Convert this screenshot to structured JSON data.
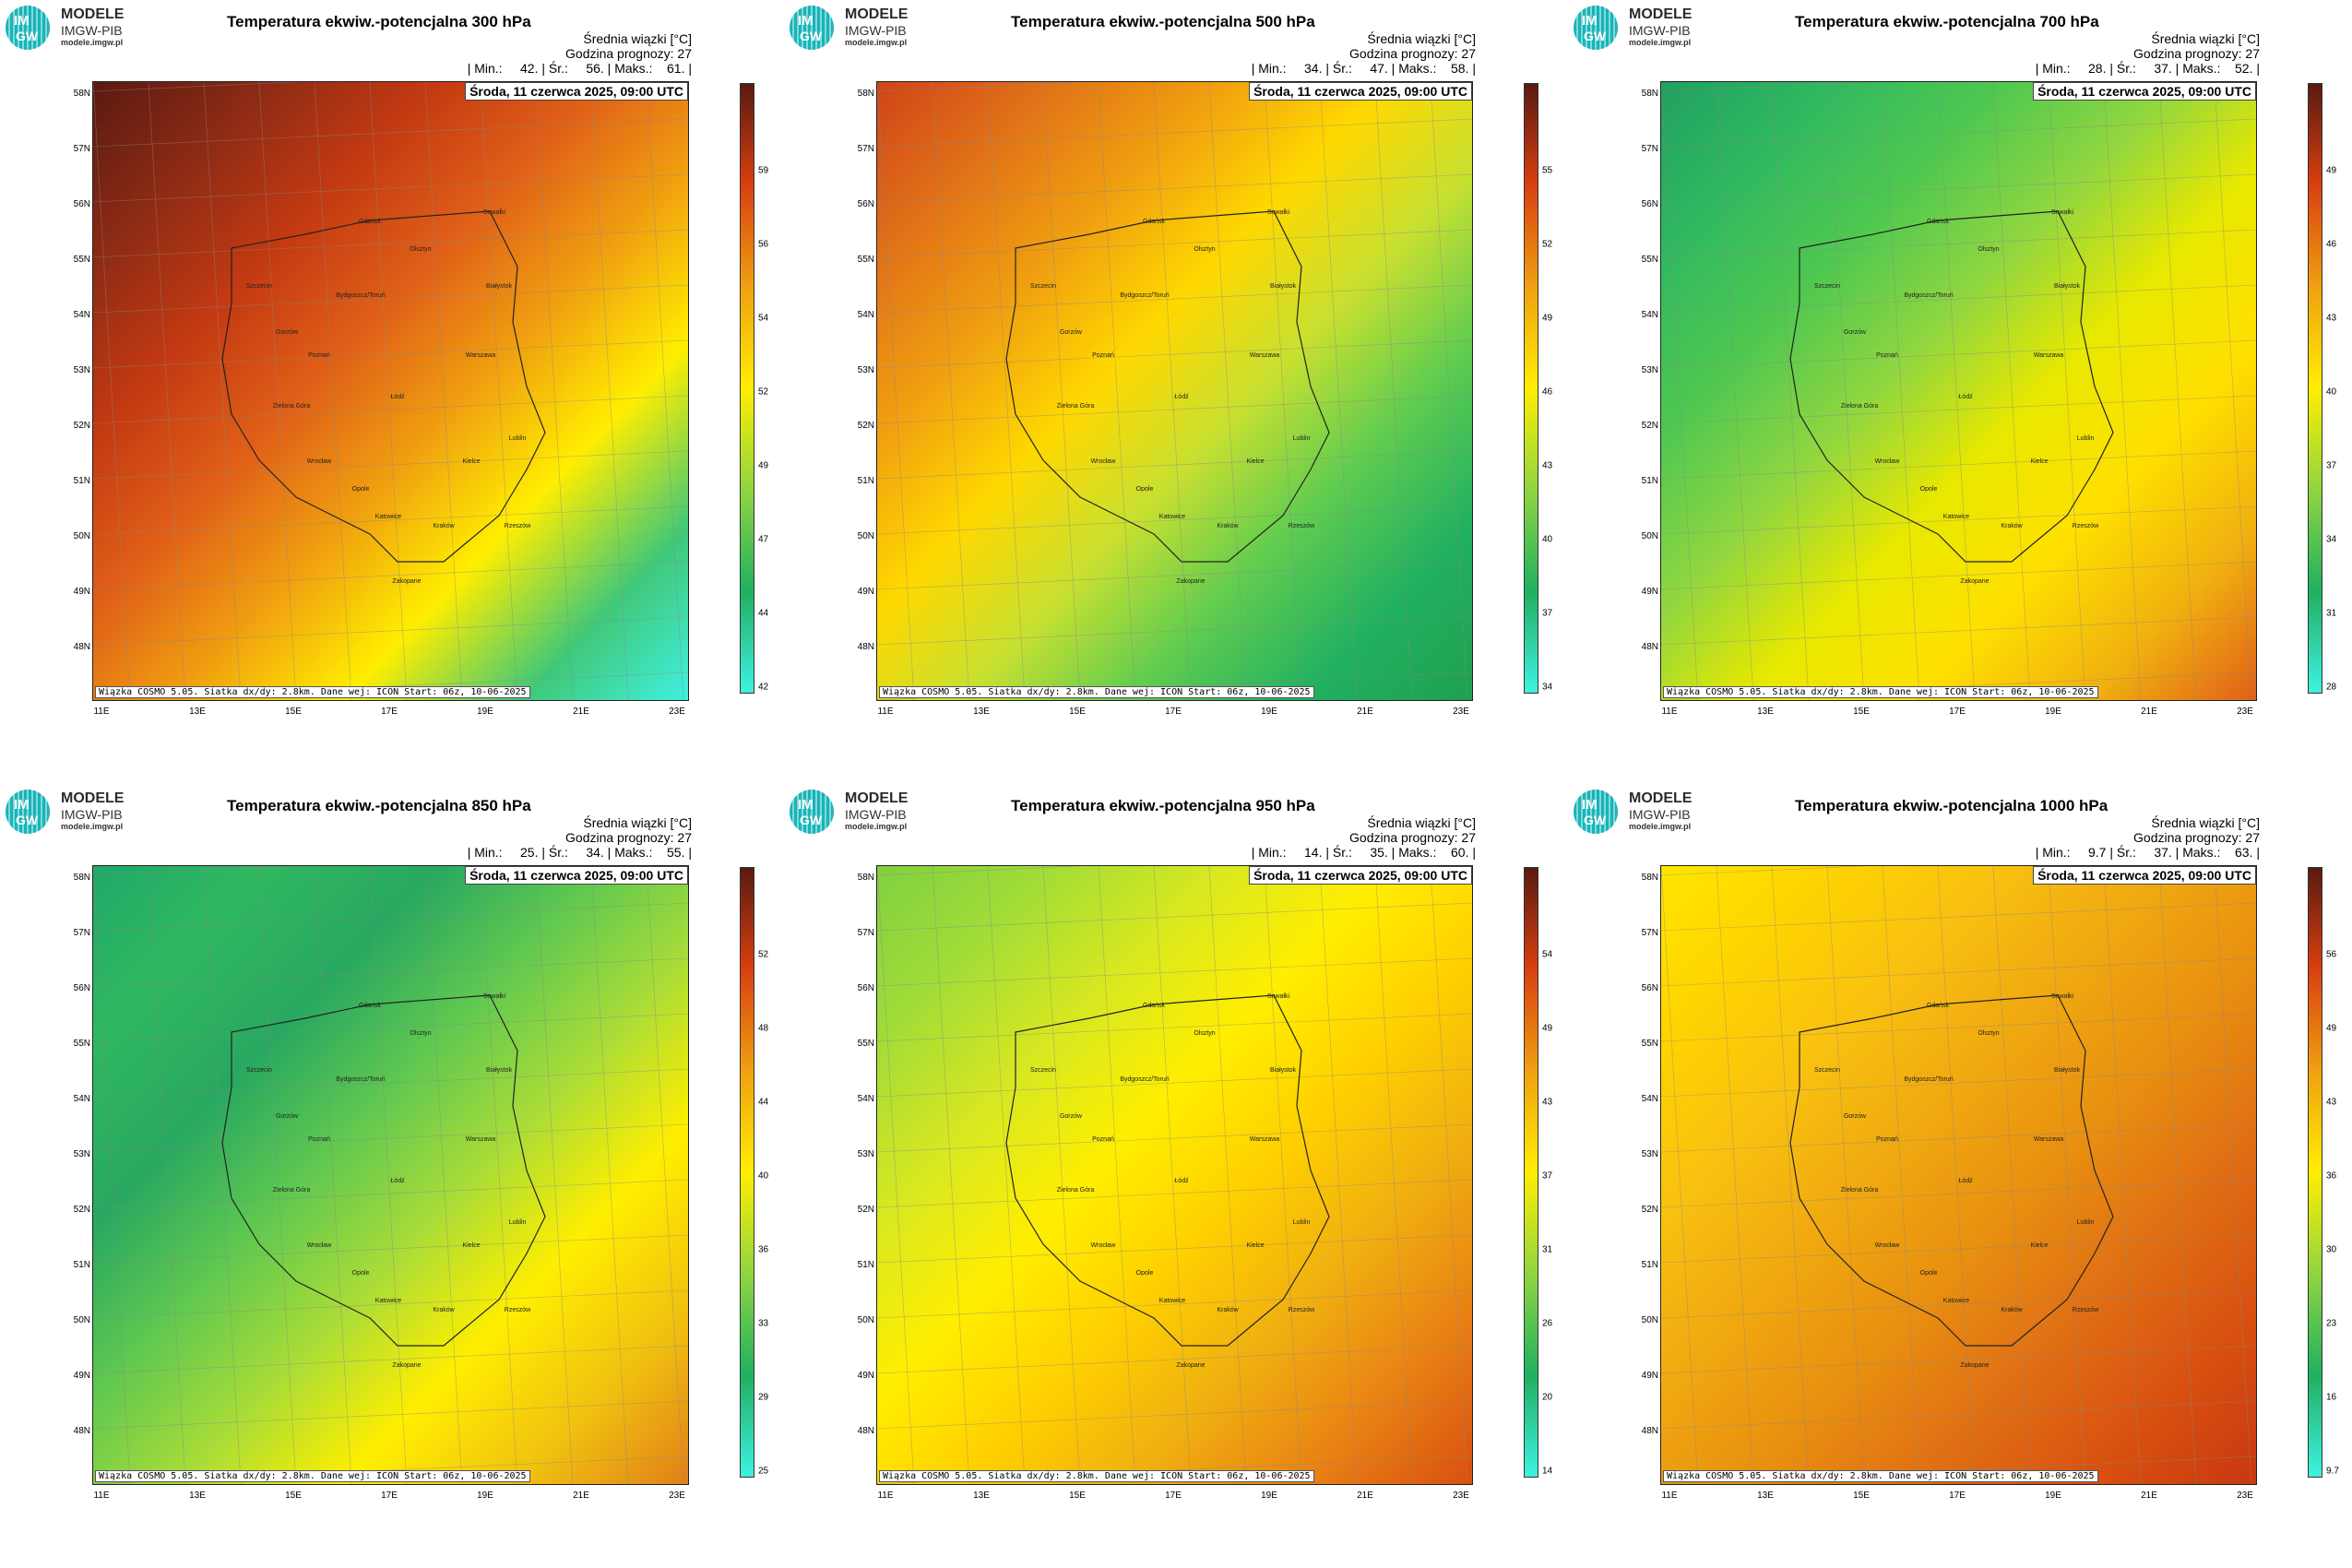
{
  "logo": {
    "mark_top": "IM",
    "mark_bottom": "GW",
    "name": "MODELE",
    "org": "IMGW-PIB",
    "url": "modele.imgw.pl"
  },
  "common": {
    "colorbar_title": "Średnia wiązki [°C]",
    "forecast_hour": "Godzina prognozy: 27",
    "date": "Środa, 11 czerwca 2025, 09:00 UTC",
    "source": "Wiązka COSMO 5.05. Siatka dx/dy: 2.8km. Dane wej: ICON Start: 06z, 10-06-2025",
    "lat_labels": [
      "58N",
      "57N",
      "56N",
      "55N",
      "54N",
      "53N",
      "52N",
      "51N",
      "50N",
      "49N",
      "48N"
    ],
    "lon_labels": [
      "11E",
      "13E",
      "15E",
      "17E",
      "19E",
      "21E",
      "23E"
    ],
    "cities": [
      "Gdańsk",
      "Olsztyn",
      "Suwałki",
      "Szczecin",
      "Białystok",
      "Bydgoszcz/Toruń",
      "Gorzów",
      "Poznań",
      "Warszawa",
      "Łódź",
      "Zielona Góra",
      "Lublin",
      "Wrocław",
      "Kielce",
      "Opole",
      "Katowice",
      "Kraków",
      "Rzeszów",
      "Zakopane"
    ]
  },
  "panels": [
    {
      "title": "Temperatura ekwiw.-potencjalna 300 hPa",
      "stats": "| Min.:     42. | Śr.:     56. | Maks.:    61. |",
      "ticks": [
        "59",
        "56",
        "54",
        "52",
        "49",
        "47",
        "44",
        "42"
      ]
    },
    {
      "title": "Temperatura ekwiw.-potencjalna 500 hPa",
      "stats": "| Min.:     34. | Śr.:     47. | Maks.:    58. |",
      "ticks": [
        "55",
        "52",
        "49",
        "46",
        "43",
        "40",
        "37",
        "34"
      ]
    },
    {
      "title": "Temperatura ekwiw.-potencjalna 700 hPa",
      "stats": "| Min.:     28. | Śr.:     37. | Maks.:    52. |",
      "ticks": [
        "49",
        "46",
        "43",
        "40",
        "37",
        "34",
        "31",
        "28"
      ]
    },
    {
      "title": "Temperatura ekwiw.-potencjalna 850 hPa",
      "stats": "| Min.:     25. | Śr.:     34. | Maks.:    55. |",
      "ticks": [
        "52",
        "48",
        "44",
        "40",
        "36",
        "33",
        "29",
        "25"
      ]
    },
    {
      "title": "Temperatura ekwiw.-potencjalna 950 hPa",
      "stats": "| Min.:     14. | Śr.:     35. | Maks.:    60. |",
      "ticks": [
        "54",
        "49",
        "43",
        "37",
        "31",
        "26",
        "20",
        "14"
      ]
    },
    {
      "title": "Temperatura ekwiw.-potencjalna 1000 hPa",
      "stats": "| Min.:     9.7 | Śr.:     37. | Maks.:    63. |",
      "ticks": [
        "56",
        "49",
        "43",
        "36",
        "30",
        "23",
        "16",
        "9.7"
      ]
    }
  ],
  "colors": {
    "cyan": "#40f0e0",
    "green": "#1fb060",
    "lime": "#8fd640",
    "yellow": "#ffee00",
    "orange": "#f0a010",
    "red": "#d84010",
    "brown": "#5a1a10"
  }
}
